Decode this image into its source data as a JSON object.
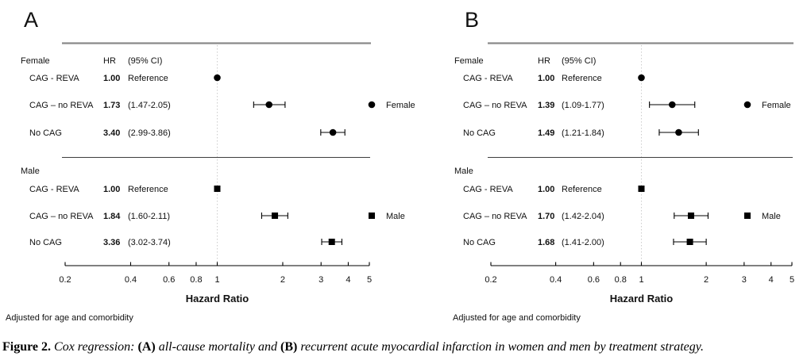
{
  "caption": {
    "figure_label": "Figure 2.",
    "seg1": " Cox regression: ",
    "a_label": "(A)",
    "seg2": " all-cause mortality and ",
    "b_label": "(B)",
    "seg3": " recurrent acute myocardial infarction in women and men by treatment strategy."
  },
  "colors": {
    "top_rule": "#8a8a8a",
    "mid_rule": "#3d3d3d",
    "reference_line": "#cccccc",
    "marker": "#000000",
    "text": "#111111"
  },
  "chart_data": [
    {
      "type": "forest",
      "panel_label": "A",
      "x_axis": {
        "scale": "log",
        "range": [
          0.2,
          5
        ],
        "tick_values": [
          0.2,
          0.4,
          0.6,
          0.8,
          1,
          2,
          3,
          4,
          5
        ],
        "tick_labels": [
          "0.2",
          "0.4",
          "0.6",
          "0.8",
          "1",
          "2",
          "3",
          "4",
          "5"
        ],
        "label": "Hazard Ratio"
      },
      "reference_value": 1,
      "column_headers": {
        "hr": "HR",
        "ci": "(95% CI)"
      },
      "groups": [
        {
          "label": "Female",
          "marker": "circle",
          "legend_label": "Female",
          "rows": [
            {
              "label": "CAG - REVA",
              "hr_text": "1.00",
              "ci_text": "Reference",
              "hr": 1.0,
              "lo": null,
              "hi": null
            },
            {
              "label": "CAG – no REVA",
              "hr_text": "1.73",
              "ci_text": "(1.47-2.05)",
              "hr": 1.73,
              "lo": 1.47,
              "hi": 2.05
            },
            {
              "label": "No CAG",
              "hr_text": "3.40",
              "ci_text": "(2.99-3.86)",
              "hr": 3.4,
              "lo": 2.99,
              "hi": 3.86
            }
          ]
        },
        {
          "label": "Male",
          "marker": "square",
          "legend_label": "Male",
          "rows": [
            {
              "label": "CAG - REVA",
              "hr_text": "1.00",
              "ci_text": "Reference",
              "hr": 1.0,
              "lo": null,
              "hi": null
            },
            {
              "label": "CAG – no REVA",
              "hr_text": "1.84",
              "ci_text": "(1.60-2.11)",
              "hr": 1.84,
              "lo": 1.6,
              "hi": 2.11
            },
            {
              "label": "No CAG",
              "hr_text": "3.36",
              "ci_text": "(3.02-3.74)",
              "hr": 3.36,
              "lo": 3.02,
              "hi": 3.74
            }
          ]
        }
      ],
      "footnote": "Adjusted for age and comorbidity"
    },
    {
      "type": "forest",
      "panel_label": "B",
      "x_axis": {
        "scale": "log",
        "range": [
          0.2,
          5
        ],
        "tick_values": [
          0.2,
          0.4,
          0.6,
          0.8,
          1,
          2,
          3,
          4,
          5
        ],
        "tick_labels": [
          "0.2",
          "0.4",
          "0.6",
          "0.8",
          "1",
          "2",
          "3",
          "4",
          "5"
        ],
        "label": "Hazard Ratio"
      },
      "reference_value": 1,
      "column_headers": {
        "hr": "HR",
        "ci": "(95% CI)"
      },
      "groups": [
        {
          "label": "Female",
          "marker": "circle",
          "legend_label": "Female",
          "rows": [
            {
              "label": "CAG - REVA",
              "hr_text": "1.00",
              "ci_text": "Reference",
              "hr": 1.0,
              "lo": null,
              "hi": null
            },
            {
              "label": "CAG – no REVA",
              "hr_text": "1.39",
              "ci_text": "(1.09-1.77)",
              "hr": 1.39,
              "lo": 1.09,
              "hi": 1.77
            },
            {
              "label": "No CAG",
              "hr_text": "1.49",
              "ci_text": "(1.21-1.84)",
              "hr": 1.49,
              "lo": 1.21,
              "hi": 1.84
            }
          ]
        },
        {
          "label": "Male",
          "marker": "square",
          "legend_label": "Male",
          "rows": [
            {
              "label": "CAG - REVA",
              "hr_text": "1.00",
              "ci_text": "Reference",
              "hr": 1.0,
              "lo": null,
              "hi": null
            },
            {
              "label": "CAG – no REVA",
              "hr_text": "1.70",
              "ci_text": "(1.42-2.04)",
              "hr": 1.7,
              "lo": 1.42,
              "hi": 2.04
            },
            {
              "label": "No CAG",
              "hr_text": "1.68",
              "ci_text": "(1.41-2.00)",
              "hr": 1.68,
              "lo": 1.41,
              "hi": 2.0
            }
          ]
        }
      ],
      "footnote": "Adjusted for age and comorbidity"
    }
  ]
}
